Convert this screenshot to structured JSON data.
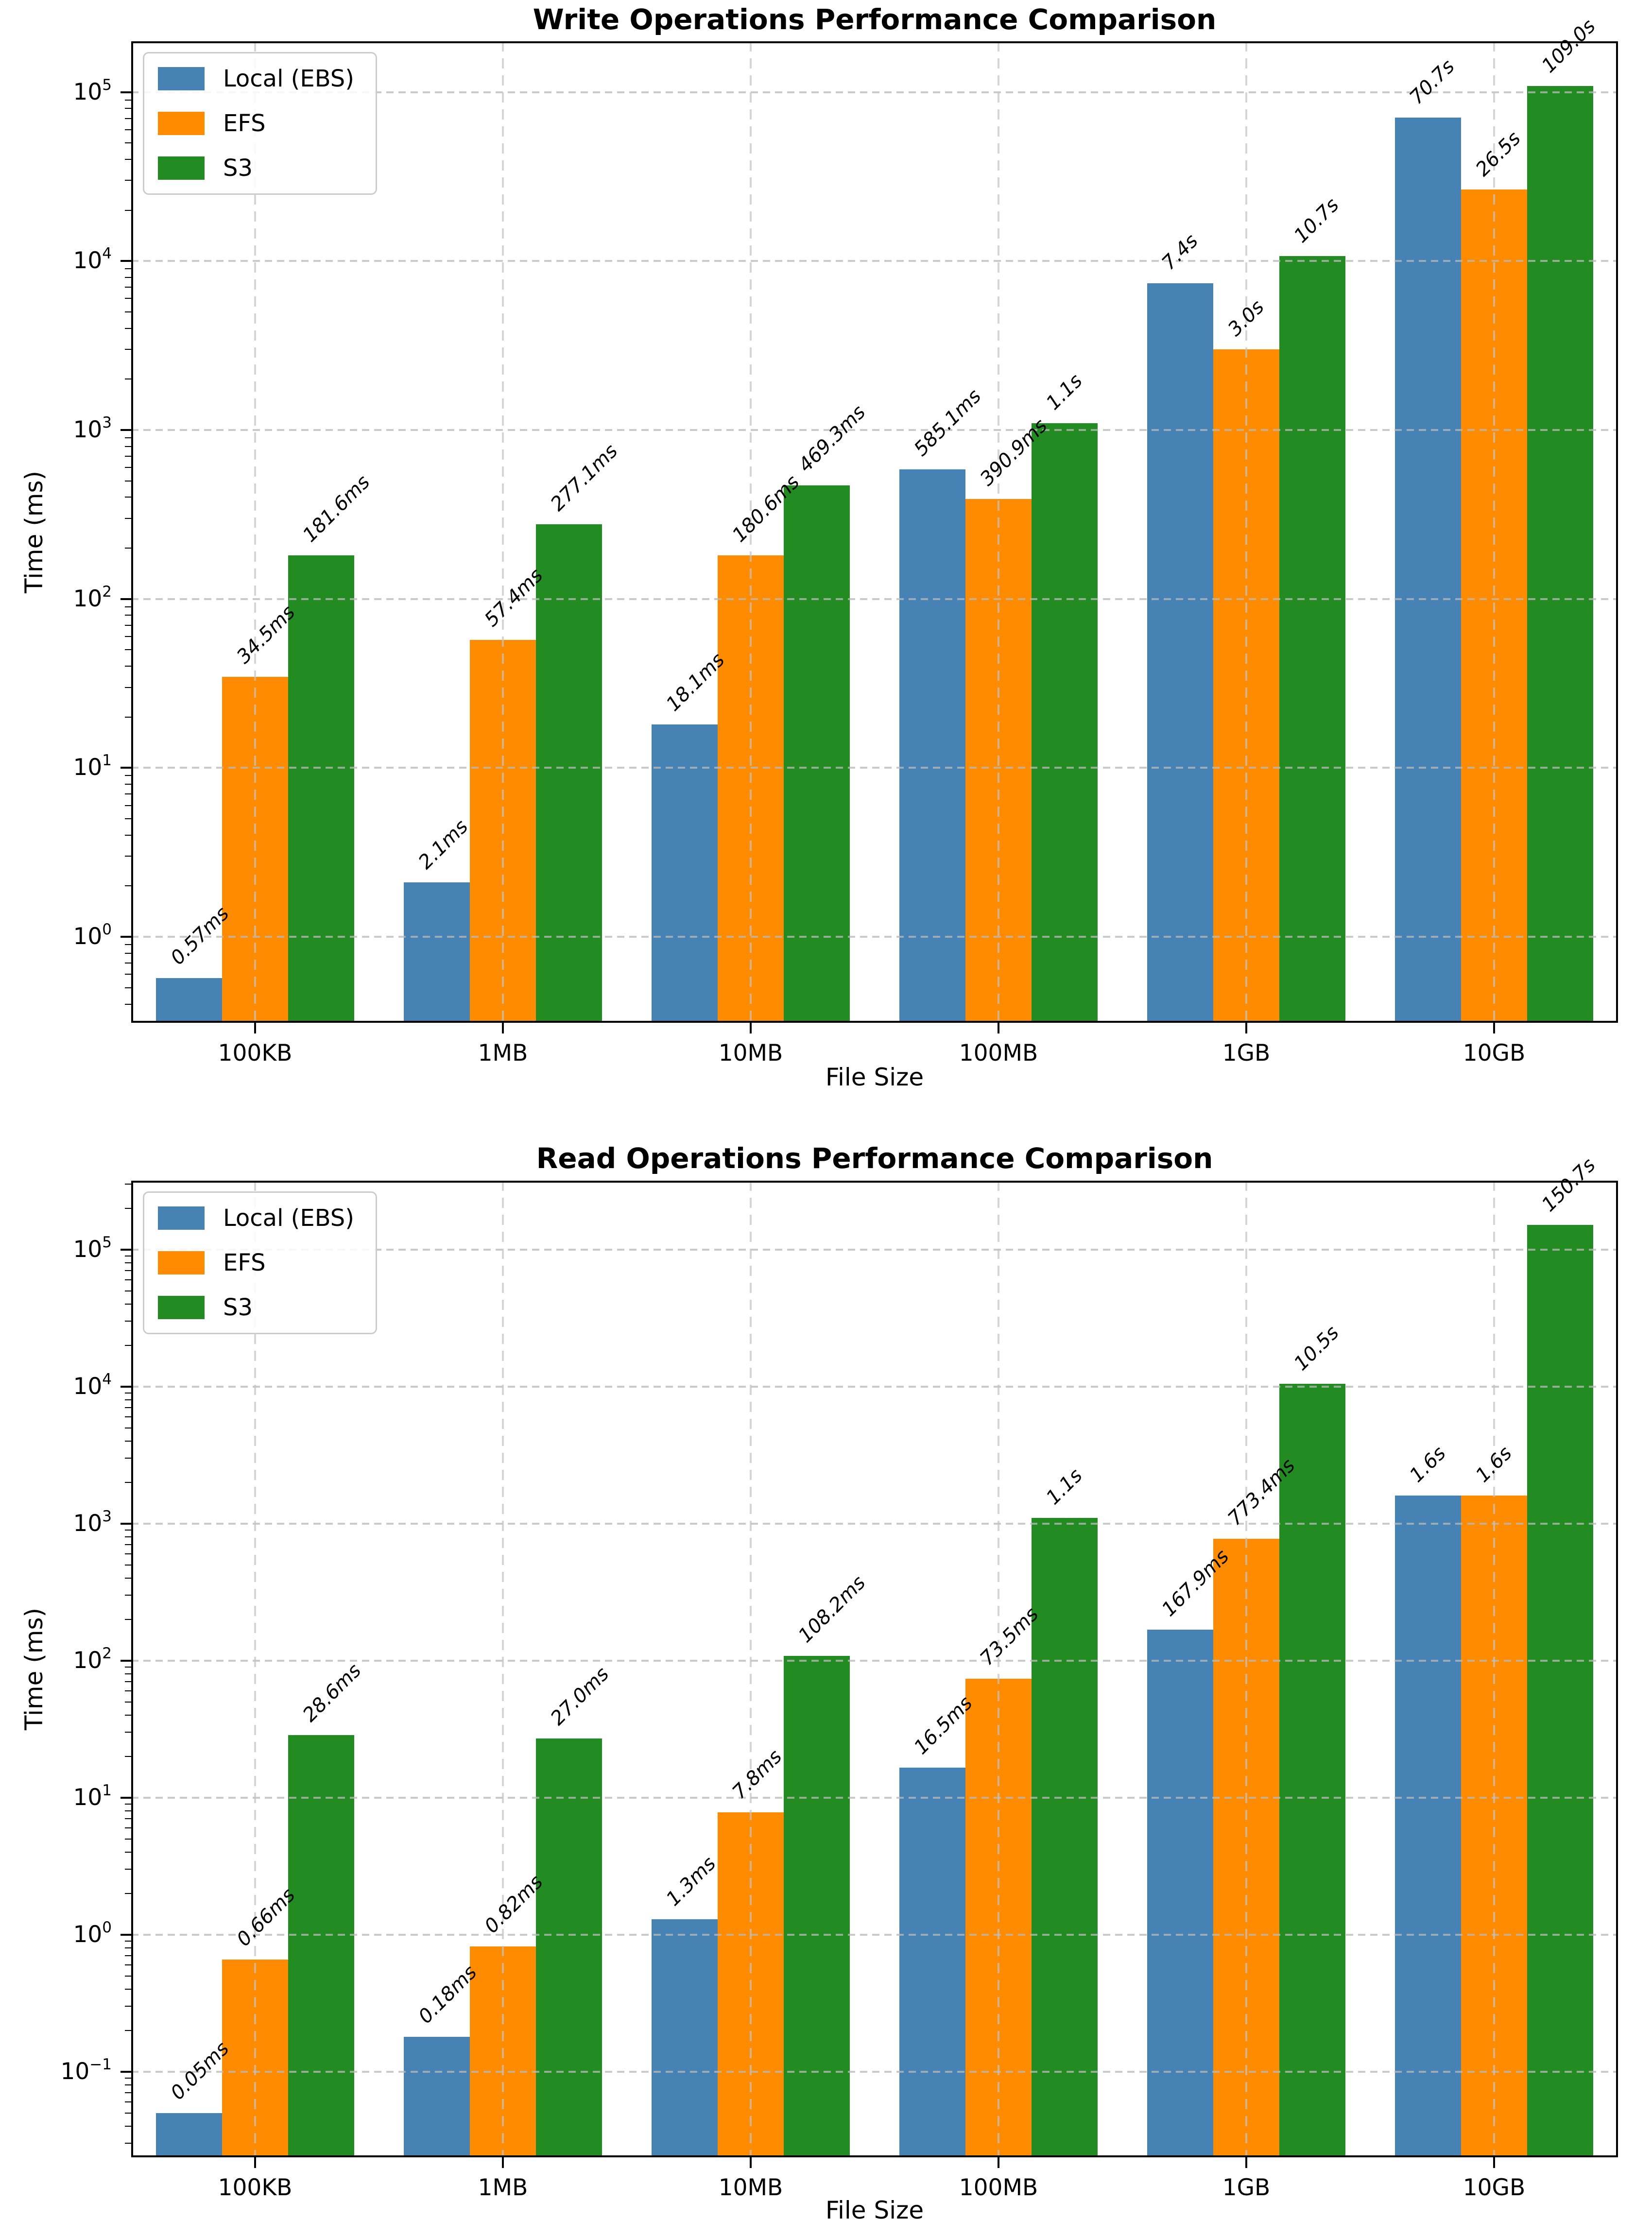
{
  "figure": {
    "background": "#ffffff"
  },
  "styles": {
    "grid_color": "#c8c8c8",
    "spine_color": "#000000",
    "text_color": "#000000",
    "legend_border": "#cccccc",
    "legend_background": "#ffffff",
    "series_colors": {
      "local_ebs": "#4682B4",
      "efs": "#FF8C00",
      "s3": "#228B22"
    }
  },
  "chart_data": [
    {
      "type": "bar",
      "title": "Write Operations Performance Comparison",
      "xlabel": "File Size",
      "ylabel": "Time (ms)",
      "yscale": "log",
      "ylim": [
        0.31,
        200000
      ],
      "ytick_exponents": [
        0,
        1,
        2,
        3,
        4,
        5
      ],
      "grid": true,
      "legend_position": "upper left",
      "categories": [
        "100KB",
        "1MB",
        "10MB",
        "100MB",
        "1GB",
        "10GB"
      ],
      "series": [
        {
          "name": "Local (EBS)",
          "color": "#4682B4",
          "values_ms": [
            0.57,
            2.1,
            18.1,
            585.1,
            7400,
            70700
          ],
          "labels": [
            "0.57ms",
            "2.1ms",
            "18.1ms",
            "585.1ms",
            "7.4s",
            "70.7s"
          ]
        },
        {
          "name": "EFS",
          "color": "#FF8C00",
          "values_ms": [
            34.5,
            57.4,
            180.6,
            390.9,
            3000,
            26500
          ],
          "labels": [
            "34.5ms",
            "57.4ms",
            "180.6ms",
            "390.9ms",
            "3.0s",
            "26.5s"
          ]
        },
        {
          "name": "S3",
          "color": "#228B22",
          "values_ms": [
            181.6,
            277.1,
            469.3,
            1100,
            10700,
            109000
          ],
          "labels": [
            "181.6ms",
            "277.1ms",
            "469.3ms",
            "1.1s",
            "10.7s",
            "109.0s"
          ]
        }
      ]
    },
    {
      "type": "bar",
      "title": "Read Operations Performance Comparison",
      "xlabel": "File Size",
      "ylabel": "Time (ms)",
      "yscale": "log",
      "ylim": [
        0.0237,
        318000
      ],
      "ytick_exponents": [
        -1,
        0,
        1,
        2,
        3,
        4,
        5
      ],
      "grid": true,
      "legend_position": "upper left",
      "categories": [
        "100KB",
        "1MB",
        "10MB",
        "100MB",
        "1GB",
        "10GB"
      ],
      "series": [
        {
          "name": "Local (EBS)",
          "color": "#4682B4",
          "values_ms": [
            0.05,
            0.18,
            1.3,
            16.5,
            167.9,
            1600
          ],
          "labels": [
            "0.05ms",
            "0.18ms",
            "1.3ms",
            "16.5ms",
            "167.9ms",
            "1.6s"
          ]
        },
        {
          "name": "EFS",
          "color": "#FF8C00",
          "values_ms": [
            0.66,
            0.82,
            7.8,
            73.5,
            773.4,
            1600
          ],
          "labels": [
            "0.66ms",
            "0.82ms",
            "7.8ms",
            "73.5ms",
            "773.4ms",
            "1.6s"
          ]
        },
        {
          "name": "S3",
          "color": "#228B22",
          "values_ms": [
            28.6,
            27.0,
            108.2,
            1100,
            10500,
            150700
          ],
          "labels": [
            "28.6ms",
            "27.0ms",
            "108.2ms",
            "1.1s",
            "10.5s",
            "150.7s"
          ]
        }
      ]
    }
  ]
}
